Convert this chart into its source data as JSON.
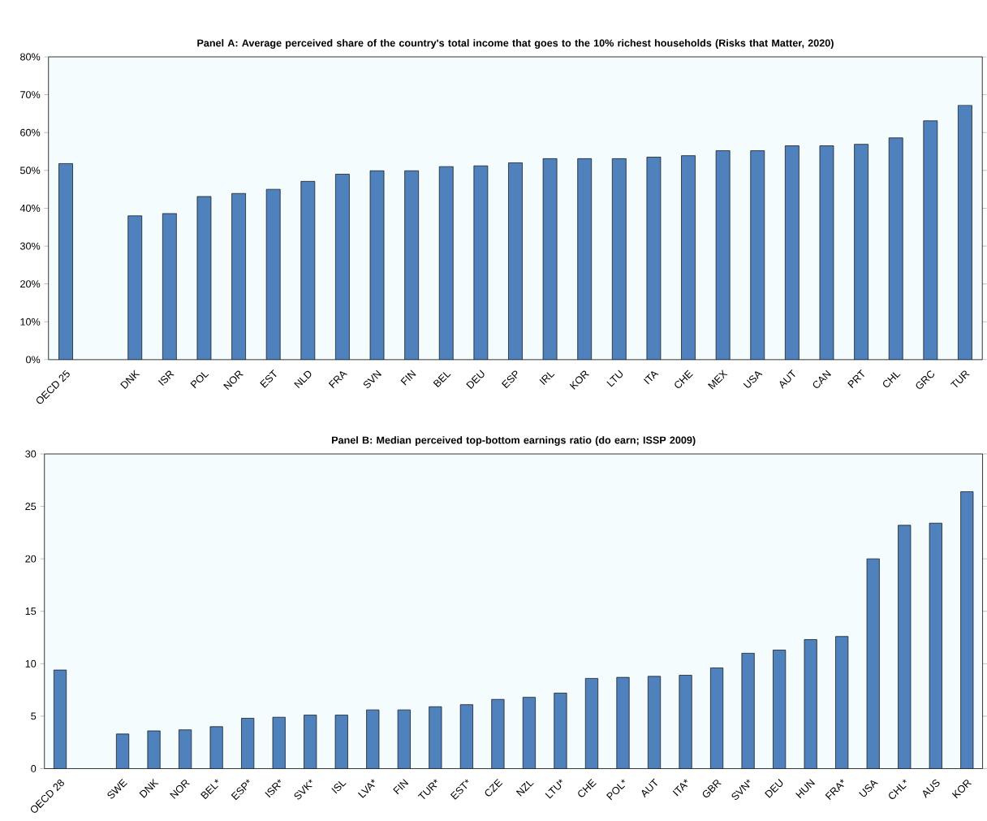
{
  "chart_data": [
    {
      "type": "bar",
      "title": "Panel A: Average perceived share of the country's total income that goes to the 10% richest households (Risks that Matter, 2020)",
      "categories": [
        "OECD 25",
        null,
        "DNK",
        "ISR",
        "POL",
        "NOR",
        "EST",
        "NLD",
        "FRA",
        "SVN",
        "FIN",
        "BEL",
        "DEU",
        "ESP",
        "IRL",
        "KOR",
        "LTU",
        "ITA",
        "CHE",
        "MEX",
        "USA",
        "AUT",
        "CAN",
        "PRT",
        "CHL",
        "GRC",
        "TUR"
      ],
      "values": [
        51.8,
        null,
        38.0,
        38.6,
        43.1,
        43.9,
        45.0,
        47.1,
        49.0,
        49.9,
        49.9,
        51.0,
        51.2,
        52.0,
        53.1,
        53.1,
        53.1,
        53.5,
        53.9,
        55.2,
        55.2,
        56.5,
        56.5,
        56.9,
        58.6,
        63.1,
        67.2
      ],
      "color": "#4f81bd",
      "ylim": [
        0,
        80
      ],
      "yticks": [
        {
          "value": 0,
          "label": "0%"
        },
        {
          "value": 10,
          "label": "10%"
        },
        {
          "value": 20,
          "label": "20%"
        },
        {
          "value": 30,
          "label": "30%"
        },
        {
          "value": 40,
          "label": "40%"
        },
        {
          "value": 50,
          "label": "50%"
        },
        {
          "value": 60,
          "label": "60%"
        },
        {
          "value": 70,
          "label": "70%"
        },
        {
          "value": 80,
          "label": "80%"
        }
      ],
      "grid": false
    },
    {
      "type": "bar",
      "title": "Panel B: Median perceived top-bottom earnings ratio (do earn; ISSP 2009)",
      "categories": [
        "OECD 28",
        null,
        "SWE",
        "DNK",
        "NOR",
        "BEL*",
        "ESP*",
        "ISR*",
        "SVK*",
        "ISL",
        "LVA*",
        "FIN",
        "TUR*",
        "EST*",
        "CZE",
        "NZL",
        "LTU*",
        "CHE",
        "POL*",
        "AUT",
        "ITA*",
        "GBR",
        "SVN*",
        "DEU",
        "HUN",
        "FRA*",
        "USA",
        "CHL*",
        "AUS",
        "KOR"
      ],
      "values": [
        9.4,
        null,
        3.3,
        3.6,
        3.7,
        4.0,
        4.8,
        4.9,
        5.1,
        5.1,
        5.6,
        5.6,
        5.9,
        6.1,
        6.6,
        6.8,
        7.2,
        8.6,
        8.7,
        8.8,
        8.9,
        9.6,
        11.0,
        11.3,
        12.3,
        12.6,
        20.0,
        23.2,
        23.4,
        26.4
      ],
      "color": "#4f81bd",
      "ylim": [
        0,
        30
      ],
      "yticks": [
        0,
        5,
        10,
        15,
        20,
        25,
        30
      ],
      "grid": false
    }
  ]
}
